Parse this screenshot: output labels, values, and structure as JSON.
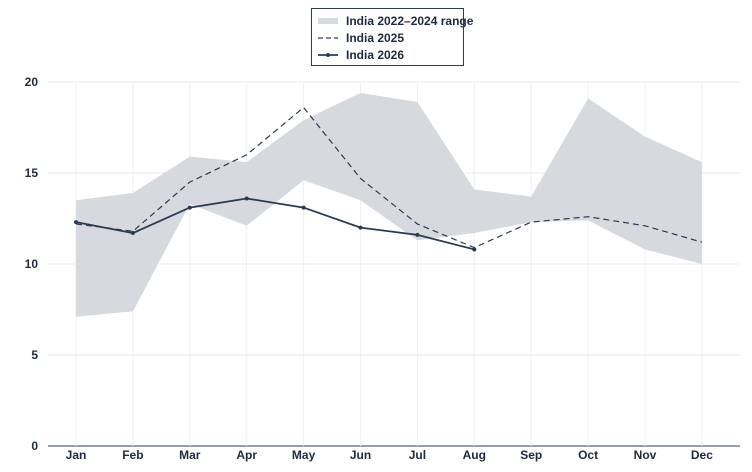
{
  "chart_data": {
    "type": "line",
    "categories": [
      "Jan",
      "Feb",
      "Mar",
      "Apr",
      "May",
      "Jun",
      "Jul",
      "Aug",
      "Sep",
      "Oct",
      "Nov",
      "Dec"
    ],
    "ylim": [
      0,
      20
    ],
    "yticks": [
      0,
      5,
      10,
      15,
      20
    ],
    "grid": true,
    "legend_position": "top-center",
    "series": [
      {
        "name": "India 2022–2024 range",
        "kind": "band",
        "color": "#d6d9de",
        "low": [
          7.1,
          7.4,
          13.3,
          12.1,
          14.6,
          13.5,
          11.3,
          11.7,
          12.3,
          12.4,
          10.8,
          10.0
        ],
        "high": [
          13.5,
          13.9,
          15.9,
          15.6,
          17.9,
          19.4,
          18.9,
          14.1,
          13.7,
          19.1,
          17.0,
          15.6
        ]
      },
      {
        "name": "India 2025",
        "kind": "dashed",
        "color": "#2b3a55",
        "values": [
          12.2,
          11.8,
          14.5,
          16.0,
          18.6,
          14.7,
          12.2,
          10.9,
          12.3,
          12.6,
          12.1,
          11.2
        ]
      },
      {
        "name": "India 2026",
        "kind": "solid-marker",
        "color": "#2b3a55",
        "values": [
          12.3,
          11.7,
          13.1,
          13.6,
          13.1,
          12.0,
          11.6,
          10.8,
          null,
          null,
          null,
          null
        ]
      }
    ]
  }
}
